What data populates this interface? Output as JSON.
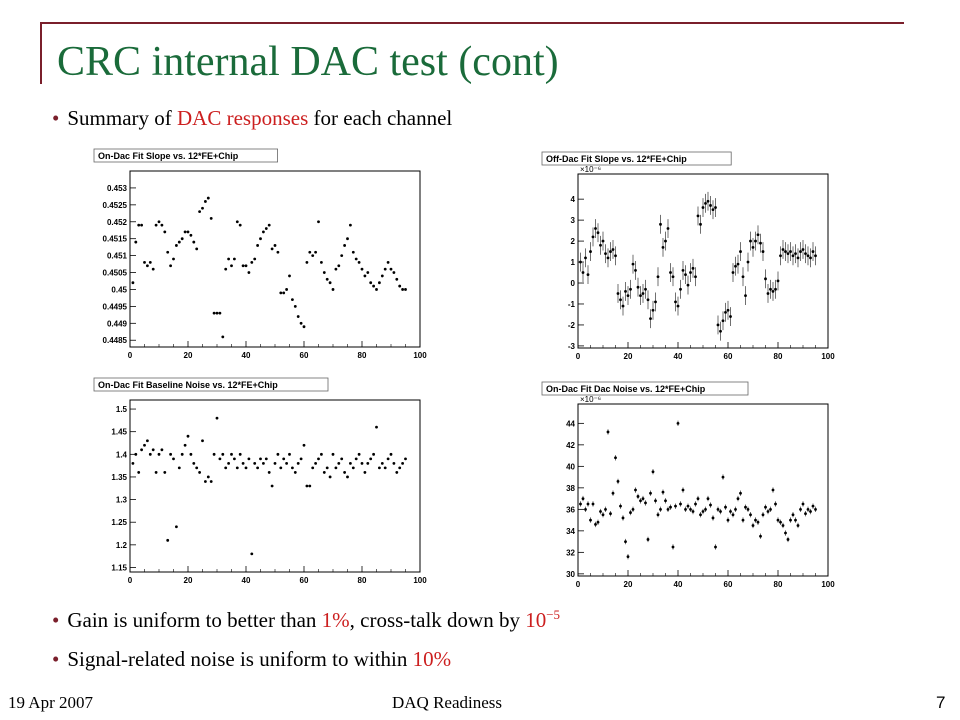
{
  "slide": {
    "title": "CRC internal DAC test (cont)",
    "bullet1": {
      "pre": "Summary of ",
      "highlight": "DAC responses",
      "post": " for each channel"
    },
    "bullet2": {
      "pre": "Gain is uniform to better than ",
      "h1": "1%",
      "mid": ", cross-talk down by ",
      "h2_base": "10",
      "h2_exp": "−5"
    },
    "bullet3": {
      "pre": "Signal-related noise is uniform to within ",
      "highlight": "10%"
    },
    "footer_date": "19 Apr 2007",
    "footer_center": "DAQ Readiness",
    "page_number": "7",
    "highlight_color": "#cc1f1f",
    "title_color": "#1a6b3a"
  },
  "chart_data": [
    {
      "type": "scatter",
      "title": "On-Dac Fit Slope vs. 12*FE+Chip",
      "xlim": [
        0,
        100
      ],
      "ylim": [
        0.4483,
        0.4535
      ],
      "yticks": [
        "0.4485",
        "0.449",
        "0.4495",
        "0.45",
        "0.4505",
        "0.451",
        "0.4515",
        "0.452",
        "0.4525",
        "0.453"
      ],
      "ytick_values": [
        0.4485,
        0.449,
        0.4495,
        0.45,
        0.4505,
        0.451,
        0.4515,
        0.452,
        0.4525,
        0.453
      ],
      "xticks": [
        "0",
        "20",
        "40",
        "60",
        "80",
        "100"
      ],
      "xtick_values": [
        0,
        20,
        40,
        60,
        80,
        100
      ],
      "exponent": "",
      "errorbars": false,
      "x": [
        1,
        2,
        3,
        4,
        5,
        6,
        7,
        8,
        9,
        10,
        11,
        12,
        13,
        14,
        15,
        16,
        17,
        18,
        19,
        20,
        21,
        22,
        23,
        24,
        25,
        26,
        27,
        28,
        29,
        30,
        31,
        32,
        33,
        34,
        35,
        36,
        37,
        38,
        39,
        40,
        41,
        42,
        43,
        44,
        45,
        46,
        47,
        48,
        49,
        50,
        51,
        52,
        53,
        54,
        55,
        56,
        57,
        58,
        59,
        60,
        61,
        62,
        63,
        64,
        65,
        66,
        67,
        68,
        69,
        70,
        71,
        72,
        73,
        74,
        75,
        76,
        77,
        78,
        79,
        80,
        81,
        82,
        83,
        84,
        85,
        86,
        87,
        88,
        89,
        90,
        91,
        92,
        93,
        94,
        95
      ],
      "y": [
        0.4502,
        0.4514,
        0.4519,
        0.4519,
        0.4508,
        0.4507,
        0.4508,
        0.4506,
        0.4519,
        0.452,
        0.4519,
        0.4517,
        0.4511,
        0.4507,
        0.4509,
        0.4513,
        0.4514,
        0.4515,
        0.4517,
        0.4517,
        0.4516,
        0.4514,
        0.4512,
        0.4523,
        0.4524,
        0.4526,
        0.4527,
        0.4521,
        0.4493,
        0.4493,
        0.4493,
        0.4486,
        0.4506,
        0.4509,
        0.4507,
        0.4509,
        0.452,
        0.4519,
        0.4507,
        0.4507,
        0.4505,
        0.4508,
        0.4509,
        0.4513,
        0.4515,
        0.4517,
        0.4518,
        0.4519,
        0.4512,
        0.4513,
        0.4511,
        0.4499,
        0.4499,
        0.45,
        0.4504,
        0.4497,
        0.4495,
        0.4492,
        0.449,
        0.4489,
        0.4508,
        0.4511,
        0.451,
        0.4511,
        0.452,
        0.4508,
        0.4505,
        0.4503,
        0.4502,
        0.45,
        0.4506,
        0.4507,
        0.451,
        0.4513,
        0.4515,
        0.4519,
        0.4511,
        0.4509,
        0.4508,
        0.4506,
        0.4504,
        0.4505,
        0.4502,
        0.4501,
        0.45,
        0.4502,
        0.4504,
        0.4506,
        0.4508,
        0.4506,
        0.4505,
        0.4503,
        0.4501,
        0.45,
        0.45
      ]
    },
    {
      "type": "scatter",
      "title": "Off-Dac Fit Slope vs. 12*FE+Chip",
      "xlim": [
        0,
        100
      ],
      "ylim": [
        -3.1,
        5.2
      ],
      "yticks": [
        "-3",
        "-2",
        "-1",
        "0",
        "1",
        "2",
        "3",
        "4"
      ],
      "ytick_values": [
        -3,
        -2,
        -1,
        0,
        1,
        2,
        3,
        4
      ],
      "xticks": [
        "0",
        "20",
        "40",
        "60",
        "80",
        "100"
      ],
      "xtick_values": [
        0,
        20,
        40,
        60,
        80,
        100
      ],
      "exponent": "×10⁻⁶",
      "errorbars": true,
      "err": 0.45,
      "x": [
        1,
        2,
        3,
        4,
        5,
        6,
        7,
        8,
        9,
        10,
        11,
        12,
        13,
        14,
        15,
        16,
        17,
        18,
        19,
        20,
        21,
        22,
        23,
        24,
        25,
        26,
        27,
        28,
        29,
        30,
        31,
        32,
        33,
        34,
        35,
        36,
        37,
        38,
        39,
        40,
        41,
        42,
        43,
        44,
        45,
        46,
        47,
        48,
        49,
        50,
        51,
        52,
        53,
        54,
        55,
        56,
        57,
        58,
        59,
        60,
        61,
        62,
        63,
        64,
        65,
        66,
        67,
        68,
        69,
        70,
        71,
        72,
        73,
        74,
        75,
        76,
        77,
        78,
        79,
        80,
        81,
        82,
        83,
        84,
        85,
        86,
        87,
        88,
        89,
        90,
        91,
        92,
        93,
        94,
        95
      ],
      "y": [
        1.0,
        0.5,
        1.2,
        0.4,
        1.5,
        2.2,
        2.6,
        2.4,
        1.8,
        2.0,
        1.4,
        1.2,
        1.5,
        1.6,
        1.3,
        -0.5,
        -0.8,
        -1.1,
        -0.4,
        -0.6,
        -0.3,
        0.9,
        0.6,
        -0.2,
        -0.6,
        -0.5,
        -0.3,
        -0.8,
        -1.7,
        -1.3,
        -0.9,
        0.3,
        2.8,
        1.7,
        2.0,
        2.6,
        0.5,
        0.3,
        -0.9,
        -1.1,
        -0.3,
        0.6,
        0.4,
        -0.1,
        0.5,
        0.7,
        0.3,
        3.2,
        2.8,
        3.6,
        3.8,
        3.9,
        3.7,
        3.5,
        3.6,
        -2.0,
        -2.3,
        -1.8,
        -1.4,
        -1.3,
        -1.6,
        0.5,
        0.8,
        0.9,
        1.5,
        0.3,
        -0.6,
        1.0,
        2.0,
        1.7,
        2.0,
        2.3,
        1.9,
        1.5,
        0.2,
        -0.5,
        -0.3,
        -0.4,
        -0.3,
        0.1,
        1.3,
        1.6,
        1.5,
        1.4,
        1.5,
        1.3,
        1.4,
        1.2,
        1.5,
        1.6,
        1.4,
        1.3,
        1.2,
        1.5,
        1.3
      ]
    },
    {
      "type": "scatter",
      "title": "On-Dac Fit Baseline Noise vs. 12*FE+Chip",
      "xlim": [
        0,
        100
      ],
      "ylim": [
        1.14,
        1.52
      ],
      "yticks": [
        "1.15",
        "1.2",
        "1.25",
        "1.3",
        "1.35",
        "1.4",
        "1.45",
        "1.5"
      ],
      "ytick_values": [
        1.15,
        1.2,
        1.25,
        1.3,
        1.35,
        1.4,
        1.45,
        1.5
      ],
      "xticks": [
        "0",
        "20",
        "40",
        "60",
        "80",
        "100"
      ],
      "xtick_values": [
        0,
        20,
        40,
        60,
        80,
        100
      ],
      "exponent": "",
      "errorbars": false,
      "x": [
        1,
        2,
        3,
        4,
        5,
        6,
        7,
        8,
        9,
        10,
        11,
        12,
        13,
        14,
        15,
        16,
        17,
        18,
        19,
        20,
        21,
        22,
        23,
        24,
        25,
        26,
        27,
        28,
        29,
        30,
        31,
        32,
        33,
        34,
        35,
        36,
        37,
        38,
        39,
        40,
        41,
        42,
        43,
        44,
        45,
        46,
        47,
        48,
        49,
        50,
        51,
        52,
        53,
        54,
        55,
        56,
        57,
        58,
        59,
        60,
        61,
        62,
        63,
        64,
        65,
        66,
        67,
        68,
        69,
        70,
        71,
        72,
        73,
        74,
        75,
        76,
        77,
        78,
        79,
        80,
        81,
        82,
        83,
        84,
        85,
        86,
        87,
        88,
        89,
        90,
        91,
        92,
        93,
        94,
        95
      ],
      "y": [
        1.38,
        1.4,
        1.36,
        1.41,
        1.42,
        1.43,
        1.4,
        1.41,
        1.36,
        1.4,
        1.41,
        1.36,
        1.21,
        1.4,
        1.39,
        1.24,
        1.37,
        1.4,
        1.42,
        1.44,
        1.4,
        1.38,
        1.37,
        1.36,
        1.43,
        1.34,
        1.35,
        1.34,
        1.4,
        1.48,
        1.39,
        1.4,
        1.37,
        1.38,
        1.4,
        1.39,
        1.37,
        1.4,
        1.38,
        1.37,
        1.39,
        1.18,
        1.38,
        1.37,
        1.39,
        1.38,
        1.39,
        1.36,
        1.33,
        1.38,
        1.4,
        1.37,
        1.39,
        1.38,
        1.4,
        1.37,
        1.36,
        1.38,
        1.39,
        1.42,
        1.33,
        1.33,
        1.37,
        1.38,
        1.39,
        1.4,
        1.36,
        1.37,
        1.35,
        1.4,
        1.37,
        1.38,
        1.39,
        1.36,
        1.35,
        1.38,
        1.37,
        1.39,
        1.4,
        1.38,
        1.36,
        1.38,
        1.39,
        1.4,
        1.46,
        1.37,
        1.38,
        1.37,
        1.39,
        1.4,
        1.38,
        1.36,
        1.37,
        1.38,
        1.39
      ]
    },
    {
      "type": "scatter",
      "title": "On-Dac Fit Dac Noise vs. 12*FE+Chip",
      "xlim": [
        0,
        100
      ],
      "ylim": [
        29.8,
        45.8
      ],
      "yticks": [
        "30",
        "32",
        "34",
        "36",
        "38",
        "40",
        "42",
        "44"
      ],
      "ytick_values": [
        30,
        32,
        34,
        36,
        38,
        40,
        42,
        44
      ],
      "xticks": [
        "0",
        "20",
        "40",
        "60",
        "80",
        "100"
      ],
      "xtick_values": [
        0,
        20,
        40,
        60,
        80,
        100
      ],
      "exponent": "×10⁻⁶",
      "errorbars": true,
      "err": 0.25,
      "x": [
        1,
        2,
        3,
        4,
        5,
        6,
        7,
        8,
        9,
        10,
        11,
        12,
        13,
        14,
        15,
        16,
        17,
        18,
        19,
        20,
        21,
        22,
        23,
        24,
        25,
        26,
        27,
        28,
        29,
        30,
        31,
        32,
        33,
        34,
        35,
        36,
        37,
        38,
        39,
        40,
        41,
        42,
        43,
        44,
        45,
        46,
        47,
        48,
        49,
        50,
        51,
        52,
        53,
        54,
        55,
        56,
        57,
        58,
        59,
        60,
        61,
        62,
        63,
        64,
        65,
        66,
        67,
        68,
        69,
        70,
        71,
        72,
        73,
        74,
        75,
        76,
        77,
        78,
        79,
        80,
        81,
        82,
        83,
        84,
        85,
        86,
        87,
        88,
        89,
        90,
        91,
        92,
        93,
        94,
        95
      ],
      "y": [
        36.5,
        37.0,
        36.0,
        36.5,
        35.0,
        36.5,
        34.6,
        34.8,
        35.8,
        35.5,
        36.0,
        43.2,
        35.6,
        37.5,
        40.8,
        38.6,
        36.3,
        35.2,
        33.0,
        31.6,
        35.7,
        36.0,
        37.8,
        37.2,
        36.8,
        37.0,
        36.6,
        33.2,
        37.5,
        39.5,
        36.8,
        35.5,
        36.0,
        37.6,
        36.8,
        36.0,
        36.2,
        32.5,
        36.3,
        44.0,
        36.5,
        37.8,
        36.0,
        36.3,
        36.0,
        35.8,
        36.5,
        37.0,
        35.5,
        35.8,
        36.0,
        37.0,
        36.4,
        35.2,
        32.5,
        36.0,
        35.8,
        39.0,
        36.2,
        35.0,
        35.8,
        35.5,
        36.0,
        37.0,
        37.5,
        35.0,
        36.2,
        36.0,
        35.5,
        34.5,
        35.0,
        34.8,
        33.5,
        35.5,
        36.2,
        35.8,
        36.0,
        37.8,
        36.5,
        35.0,
        34.8,
        34.5,
        33.8,
        33.2,
        35.0,
        35.5,
        35.0,
        34.5,
        36.0,
        36.5,
        35.6,
        36.0,
        35.8,
        36.3,
        36.0
      ]
    }
  ]
}
